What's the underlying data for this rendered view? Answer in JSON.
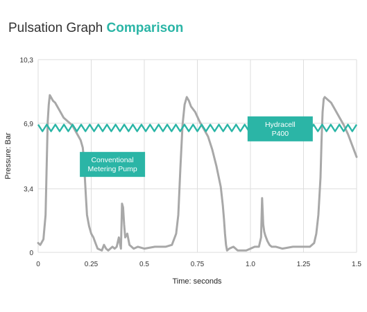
{
  "title": {
    "main": "Pulsation Graph",
    "accent": "Comparison"
  },
  "colors": {
    "teal": "#2bb5a6",
    "gray": "#a8a8a8",
    "grid": "#dddddd"
  },
  "chart_data": {
    "type": "line",
    "xlabel": "Time: seconds",
    "ylabel": "Pressure: Bar",
    "xlim": [
      0,
      1.5
    ],
    "ylim": [
      0,
      10.3
    ],
    "x_ticks": [
      {
        "value": 0,
        "label": "0"
      },
      {
        "value": 0.25,
        "label": "0.25"
      },
      {
        "value": 0.5,
        "label": "0.5"
      },
      {
        "value": 0.75,
        "label": "0.75"
      },
      {
        "value": 1.0,
        "label": "1.0"
      },
      {
        "value": 1.25,
        "label": "1.25"
      },
      {
        "value": 1.5,
        "label": "1.5"
      }
    ],
    "y_ticks": [
      {
        "value": 0,
        "label": "0"
      },
      {
        "value": 3.4,
        "label": "3,4"
      },
      {
        "value": 6.9,
        "label": "6,9"
      },
      {
        "value": 10.3,
        "label": "10,3"
      }
    ],
    "grid": true,
    "annotations": [
      {
        "lines": [
          "Conventional",
          "Metering Pump"
        ],
        "x": 0.35,
        "y": 4.7,
        "series": "conventional"
      },
      {
        "lines": [
          "Hydracell",
          "P400"
        ],
        "x": 1.14,
        "y": 6.6,
        "series": "hydracell"
      }
    ],
    "series": [
      {
        "id": "conventional",
        "color": "#a8a8a8",
        "x": [
          0,
          0.01,
          0.025,
          0.035,
          0.04,
          0.045,
          0.05,
          0.055,
          0.06,
          0.07,
          0.08,
          0.1,
          0.12,
          0.14,
          0.16,
          0.18,
          0.2,
          0.21,
          0.215,
          0.22,
          0.225,
          0.23,
          0.24,
          0.25,
          0.26,
          0.27,
          0.28,
          0.3,
          0.31,
          0.32,
          0.33,
          0.34,
          0.35,
          0.36,
          0.37,
          0.38,
          0.39,
          0.395,
          0.4,
          0.405,
          0.41,
          0.42,
          0.43,
          0.44,
          0.45,
          0.47,
          0.5,
          0.55,
          0.6,
          0.63,
          0.65,
          0.66,
          0.67,
          0.68,
          0.69,
          0.7,
          0.71,
          0.72,
          0.74,
          0.76,
          0.78,
          0.8,
          0.82,
          0.84,
          0.86,
          0.87,
          0.875,
          0.88,
          0.885,
          0.89,
          0.9,
          0.92,
          0.94,
          0.96,
          0.98,
          1.0,
          1.02,
          1.04,
          1.05,
          1.055,
          1.06,
          1.065,
          1.07,
          1.08,
          1.09,
          1.1,
          1.12,
          1.15,
          1.2,
          1.25,
          1.28,
          1.3,
          1.31,
          1.32,
          1.33,
          1.335,
          1.34,
          1.345,
          1.35,
          1.36,
          1.38,
          1.4,
          1.42,
          1.44,
          1.46,
          1.48,
          1.5
        ],
        "y": [
          0.5,
          0.4,
          0.7,
          2.0,
          4.5,
          7.0,
          7.9,
          8.4,
          8.3,
          8.1,
          8.0,
          7.6,
          7.2,
          7.0,
          6.8,
          6.4,
          6.0,
          5.6,
          5.0,
          4.0,
          3.0,
          2.0,
          1.4,
          1.0,
          0.8,
          0.5,
          0.2,
          0.1,
          0.4,
          0.2,
          0.1,
          0.2,
          0.3,
          0.2,
          0.3,
          0.8,
          0.2,
          2.6,
          2.4,
          1.5,
          0.8,
          1.0,
          0.4,
          0.3,
          0.2,
          0.3,
          0.2,
          0.3,
          0.3,
          0.4,
          1.0,
          2.0,
          4.5,
          6.8,
          7.9,
          8.3,
          8.1,
          7.8,
          7.5,
          7.0,
          6.6,
          6.2,
          5.5,
          4.6,
          3.5,
          2.5,
          1.8,
          1.0,
          0.4,
          0.1,
          0.2,
          0.3,
          0.1,
          0.1,
          0.1,
          0.2,
          0.3,
          0.3,
          0.8,
          2.9,
          1.5,
          1.1,
          0.9,
          0.6,
          0.4,
          0.3,
          0.3,
          0.2,
          0.3,
          0.3,
          0.3,
          0.5,
          1.0,
          2.0,
          4.0,
          6.0,
          7.5,
          8.2,
          8.3,
          8.2,
          8.0,
          7.6,
          7.2,
          6.8,
          6.3,
          5.7,
          5.1
        ]
      },
      {
        "id": "hydracell",
        "color": "#2bb5a6",
        "x_start": 0,
        "x_end": 1.5,
        "center": 6.65,
        "amplitude": 0.18,
        "cycles": 37
      }
    ]
  }
}
